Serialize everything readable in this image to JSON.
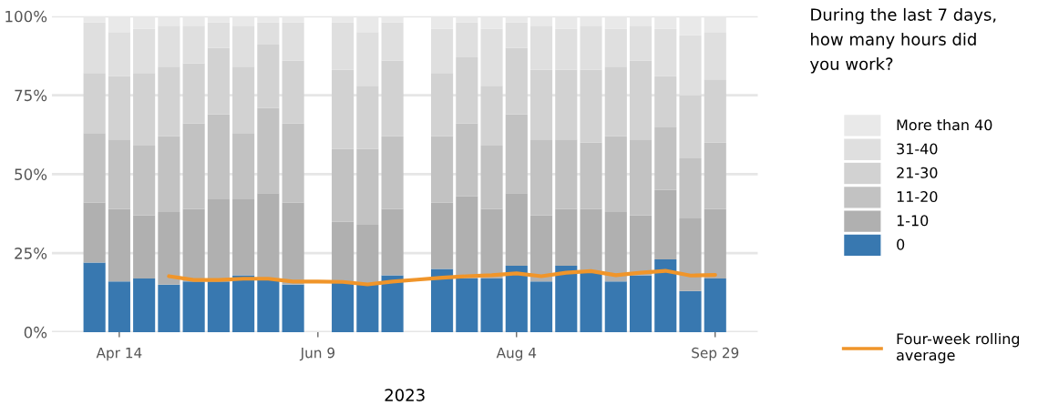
{
  "chart_data": {
    "type": "bar",
    "stacked": true,
    "xlabel": "2023",
    "legend_title": "During the last 7 days,\nhow many hours did\nyou work?",
    "x": [
      "2023-04-07",
      "2023-04-14",
      "2023-04-21",
      "2023-04-28",
      "2023-05-05",
      "2023-05-12",
      "2023-05-19",
      "2023-05-26",
      "2023-06-02",
      "2023-06-16",
      "2023-06-23",
      "2023-06-30",
      "2023-07-14",
      "2023-07-21",
      "2023-07-28",
      "2023-08-04",
      "2023-08-11",
      "2023-08-18",
      "2023-08-25",
      "2023-09-01",
      "2023-09-08",
      "2023-09-15",
      "2023-09-22",
      "2023-09-29"
    ],
    "series": [
      {
        "name": "0",
        "color": "#3878b0",
        "values": [
          22,
          16,
          17,
          15,
          16,
          16,
          18,
          17,
          15,
          16,
          15,
          18,
          20,
          17,
          17,
          21,
          16,
          21,
          19,
          16,
          18,
          23,
          13,
          17
        ]
      },
      {
        "name": "1-10",
        "color": "#b0b0b0",
        "values": [
          19,
          23,
          20,
          23,
          23,
          26,
          24,
          27,
          26,
          19,
          19,
          21,
          21,
          26,
          22,
          23,
          21,
          18,
          20,
          22,
          19,
          22,
          23,
          22
        ]
      },
      {
        "name": "11-20",
        "color": "#c2c2c2",
        "values": [
          22,
          22,
          22,
          24,
          27,
          27,
          21,
          27,
          25,
          23,
          24,
          23,
          21,
          23,
          20,
          25,
          24,
          22,
          21,
          24,
          24,
          20,
          19,
          21
        ]
      },
      {
        "name": "21-30",
        "color": "#d2d2d2",
        "values": [
          19,
          20,
          23,
          22,
          19,
          21,
          21,
          20,
          20,
          25,
          20,
          24,
          20,
          21,
          19,
          21,
          22,
          22,
          23,
          22,
          25,
          16,
          20,
          20
        ]
      },
      {
        "name": "31-40",
        "color": "#dfdfdf",
        "values": [
          16,
          14,
          14,
          13,
          12,
          8,
          13,
          7,
          12,
          15,
          17,
          12,
          14,
          11,
          18,
          8,
          14,
          13,
          14,
          12,
          11,
          15,
          19,
          15
        ]
      },
      {
        "name": "More than 40",
        "color": "#e9e9e9",
        "values": [
          2,
          5,
          4,
          3,
          3,
          2,
          3,
          2,
          2,
          2,
          5,
          2,
          4,
          2,
          4,
          2,
          3,
          4,
          3,
          4,
          3,
          4,
          6,
          5
        ]
      },
      {
        "name": "Four-week rolling\naverage",
        "type": "line",
        "color": "#f0952a",
        "x": [
          "2023-04-28",
          "2023-05-05",
          "2023-05-12",
          "2023-05-19",
          "2023-05-26",
          "2023-06-02",
          "2023-06-09",
          "2023-06-16",
          "2023-06-23",
          "2023-06-30",
          "2023-07-07",
          "2023-07-14",
          "2023-07-21",
          "2023-07-28",
          "2023-08-04",
          "2023-08-11",
          "2023-08-18",
          "2023-08-25",
          "2023-09-01",
          "2023-09-08",
          "2023-09-15",
          "2023-09-22",
          "2023-09-29"
        ],
        "values": [
          17.7,
          16.5,
          16.5,
          16.9,
          16.9,
          16.0,
          16.0,
          15.9,
          15.1,
          16.0,
          16.6,
          17.2,
          17.7,
          18.0,
          18.6,
          17.7,
          18.8,
          19.3,
          18.0,
          18.8,
          19.4,
          17.9,
          18.1
        ]
      }
    ],
    "xlim": [
      "2023-03-26",
      "2023-10-11"
    ],
    "xticks": [
      {
        "value": "2023-04-14",
        "label": "Apr 14"
      },
      {
        "value": "2023-06-09",
        "label": "Jun 9"
      },
      {
        "value": "2023-08-04",
        "label": "Aug 4"
      },
      {
        "value": "2023-09-29",
        "label": "Sep 29"
      }
    ],
    "ylim": [
      0,
      100
    ],
    "yticks": [
      {
        "value": 0,
        "label": "0%"
      },
      {
        "value": 25,
        "label": "25%"
      },
      {
        "value": 50,
        "label": "50%"
      },
      {
        "value": 75,
        "label": "75%"
      },
      {
        "value": 100,
        "label": "100%"
      }
    ],
    "grid": "y",
    "legend": "right"
  }
}
